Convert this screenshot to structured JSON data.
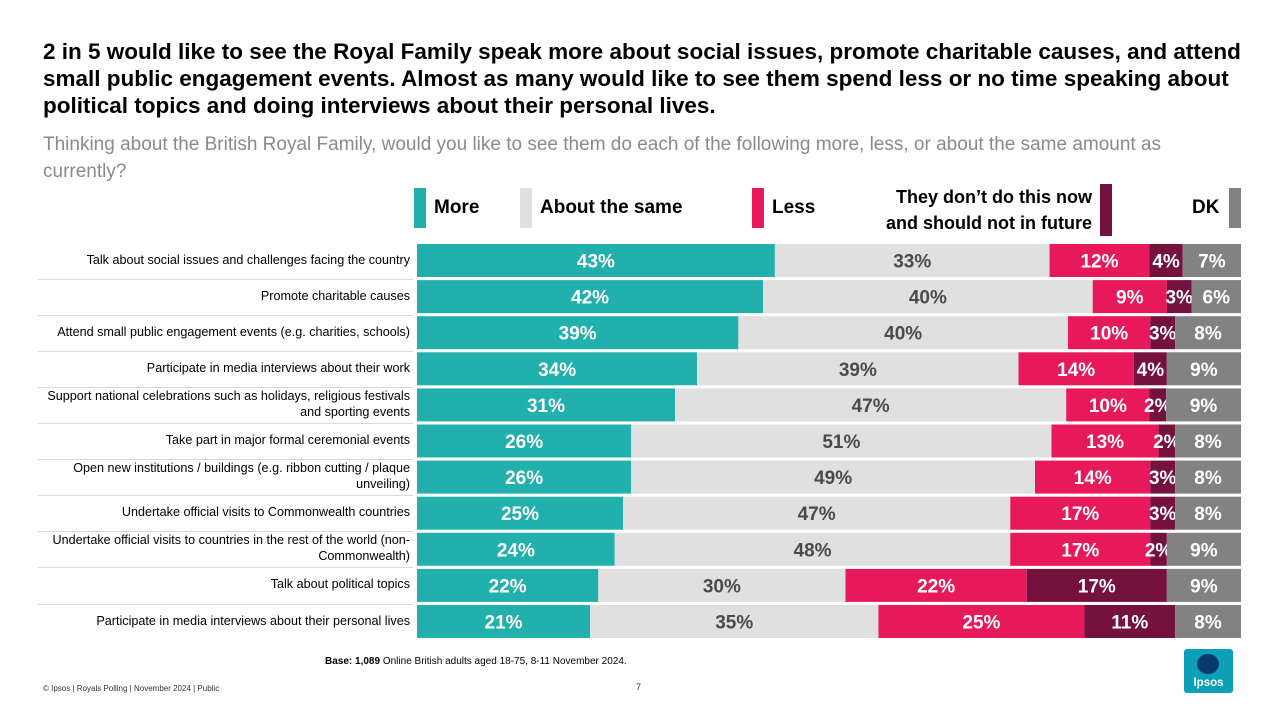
{
  "header": {
    "headline": "2 in 5 would like to see the Royal Family speak more about social issues, promote charitable causes, and attend small public engagement events. Almost as many would like to see them spend less or no time speaking about political topics and doing interviews about their personal lives.",
    "subtitle": "Thinking about the British Royal Family, would you like to see them do each of the following more, less, or about the same amount as currently?"
  },
  "legend": {
    "more": "More",
    "same": "About the same",
    "less": "Less",
    "none_line1": "They don’t do this now",
    "none_line2": "and should not in future",
    "dk": "DK"
  },
  "colors": {
    "more": "#22b0ad",
    "same": "#e0e0e0",
    "less": "#e8195a",
    "none": "#75113d",
    "dk": "#828282"
  },
  "chart_data": {
    "type": "bar",
    "orientation": "horizontal",
    "stacked": true,
    "title": "Thinking about the British Royal Family, would you like to see them do each of the following more, less, or about the same amount as currently?",
    "xlim": [
      0,
      100
    ],
    "categories": [
      "Talk about social issues and challenges facing the country",
      "Promote charitable causes",
      "Attend small public engagement events (e.g. charities, schools)",
      "Participate in media interviews about their work",
      "Support national celebrations such as holidays, religious festivals and sporting events",
      "Take part in major formal ceremonial events",
      "Open new institutions / buildings (e.g. ribbon cutting / plaque unveiling)",
      "Undertake official visits to Commonwealth countries",
      "Undertake official visits to countries in the rest of the world (non-Commonwealth)",
      "Talk about political topics",
      "Participate in media interviews about their personal lives"
    ],
    "series": [
      {
        "name": "More",
        "values": [
          43,
          42,
          39,
          34,
          31,
          26,
          26,
          25,
          24,
          22,
          21
        ]
      },
      {
        "name": "About the same",
        "values": [
          33,
          40,
          40,
          39,
          47,
          51,
          49,
          47,
          48,
          30,
          35
        ]
      },
      {
        "name": "Less",
        "values": [
          12,
          9,
          10,
          14,
          10,
          13,
          14,
          17,
          17,
          22,
          25
        ]
      },
      {
        "name": "They don’t do this now and should not in future",
        "values": [
          4,
          3,
          3,
          4,
          2,
          2,
          3,
          3,
          2,
          17,
          11
        ]
      },
      {
        "name": "DK",
        "values": [
          7,
          6,
          8,
          9,
          9,
          8,
          8,
          8,
          9,
          9,
          8
        ]
      }
    ],
    "label_suffix": "%"
  },
  "footer": {
    "base_label": "Base:",
    "base_count": "1,089",
    "base_text": "Online British adults aged 18-75, 8-11 November 2024.",
    "copyright": "© Ipsos | Royals Polling | November 2024 | Public",
    "page_number": "7",
    "logo_text": "Ipsos"
  }
}
